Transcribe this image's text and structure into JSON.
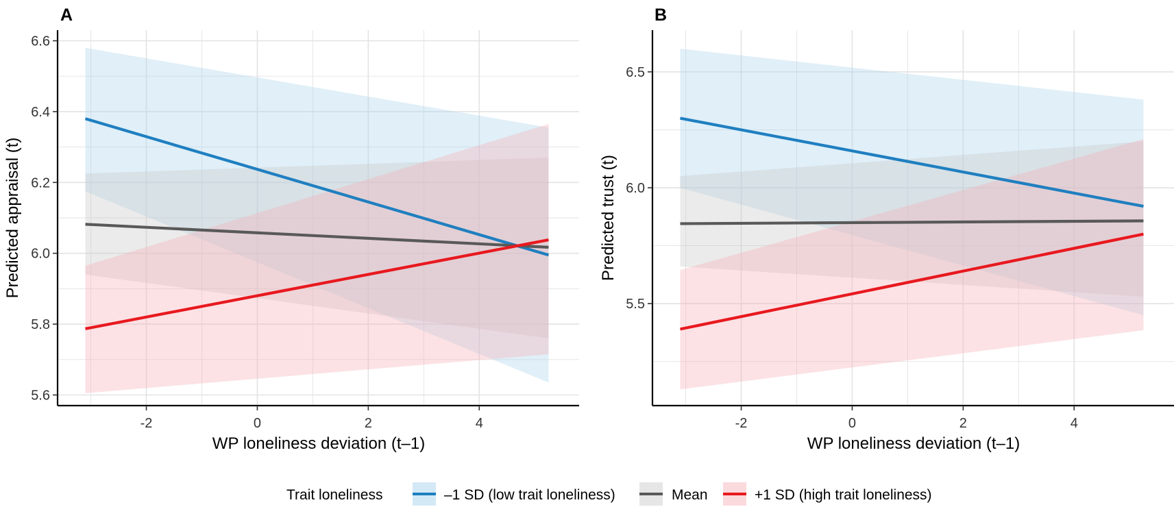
{
  "legend": {
    "title": "Trait loneliness",
    "position": "bottom",
    "entries": [
      {
        "key": "low",
        "label": "–1 SD (low trait loneliness)"
      },
      {
        "key": "mean",
        "label": "Mean"
      },
      {
        "key": "high",
        "label": "+1 SD (high trait loneliness)"
      }
    ]
  },
  "colors": {
    "low": "#1f7fc0",
    "mean": "#595959",
    "high": "#e8191f",
    "low_fill": "#a8d3ec",
    "mean_fill": "#c8c8c8",
    "high_fill": "#f7aeb6",
    "grid": "#e3e3e3"
  },
  "chart_data": [
    {
      "type": "line",
      "panel_label": "A",
      "xlabel": "WP loneliness deviation (t–1)",
      "ylabel": "Predicted appraisal (t)",
      "xlim": [
        -3.6,
        5.8
      ],
      "ylim": [
        5.57,
        6.63
      ],
      "xticks": [
        -2,
        0,
        2,
        4
      ],
      "xtick_labels": [
        "-2",
        "0",
        "2",
        "4"
      ],
      "yticks": [
        5.6,
        5.8,
        6.0,
        6.2,
        6.4,
        6.6
      ],
      "ytick_labels": [
        "5.6",
        "5.8",
        "6.0",
        "6.2",
        "6.4",
        "6.6"
      ],
      "grid": true,
      "series": [
        {
          "name": "–1 SD (low trait loneliness)",
          "key": "low",
          "x": [
            -3.1,
            5.25
          ],
          "y": [
            6.38,
            5.995
          ],
          "ci_lower": [
            6.175,
            5.635
          ],
          "ci_upper": [
            6.58,
            6.355
          ]
        },
        {
          "name": "Mean",
          "key": "mean",
          "x": [
            -3.1,
            5.25
          ],
          "y": [
            6.082,
            6.017
          ],
          "ci_lower": [
            5.94,
            5.76
          ],
          "ci_upper": [
            6.225,
            6.27
          ]
        },
        {
          "name": "+1 SD (high trait loneliness)",
          "key": "high",
          "x": [
            -3.1,
            5.25
          ],
          "y": [
            5.787,
            6.038
          ],
          "ci_lower": [
            5.605,
            5.715
          ],
          "ci_upper": [
            5.965,
            6.365
          ]
        }
      ]
    },
    {
      "type": "line",
      "panel_label": "B",
      "xlabel": "WP loneliness deviation (t–1)",
      "ylabel": "Predicted trust (t)",
      "xlim": [
        -3.6,
        5.8
      ],
      "ylim": [
        5.06,
        6.68
      ],
      "xticks": [
        -2,
        0,
        2,
        4
      ],
      "xtick_labels": [
        "-2",
        "0",
        "2",
        "4"
      ],
      "yticks": [
        5.5,
        6.0,
        6.5
      ],
      "ytick_labels": [
        "5.5",
        "6.0",
        "6.5"
      ],
      "grid": true,
      "series": [
        {
          "name": "–1 SD (low trait loneliness)",
          "key": "low",
          "x": [
            -3.1,
            5.25
          ],
          "y": [
            6.3,
            5.92
          ],
          "ci_lower": [
            6.0,
            5.45
          ],
          "ci_upper": [
            6.6,
            6.38
          ]
        },
        {
          "name": "Mean",
          "key": "mean",
          "x": [
            -3.1,
            5.25
          ],
          "y": [
            5.845,
            5.857
          ],
          "ci_lower": [
            5.66,
            5.53
          ],
          "ci_upper": [
            6.05,
            6.2
          ]
        },
        {
          "name": "+1 SD (high trait loneliness)",
          "key": "high",
          "x": [
            -3.1,
            5.25
          ],
          "y": [
            5.39,
            5.8
          ],
          "ci_lower": [
            5.13,
            5.385
          ],
          "ci_upper": [
            5.645,
            6.21
          ]
        }
      ]
    }
  ]
}
